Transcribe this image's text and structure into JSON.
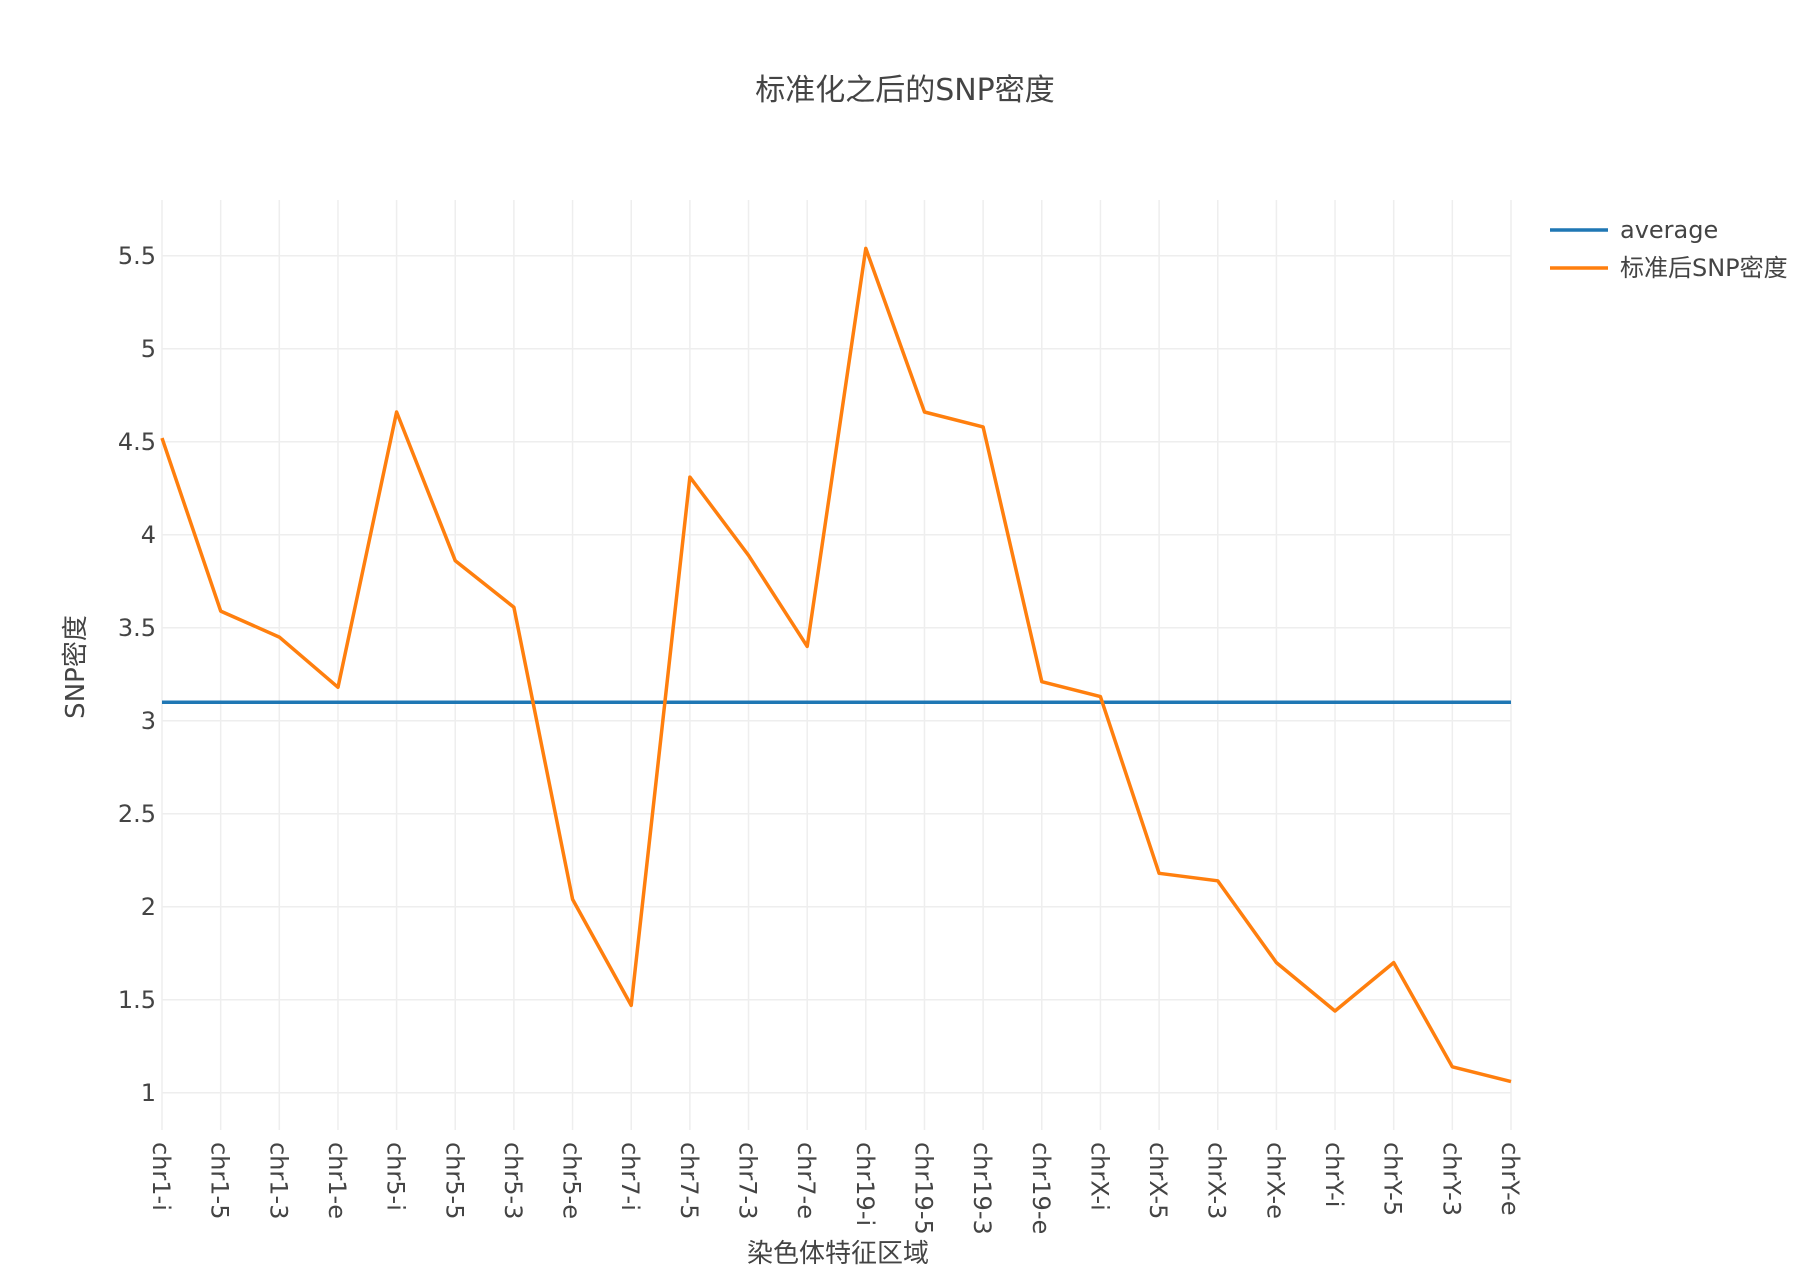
{
  "chart_data": {
    "type": "line",
    "title": "标准化之后的SNP密度",
    "xlabel": "染色体特征区域",
    "ylabel": "SNP密度",
    "ylim": [
      0.8,
      5.8
    ],
    "yticks": [
      1,
      1.5,
      2,
      2.5,
      3,
      3.5,
      4,
      4.5,
      5,
      5.5
    ],
    "ytick_labels": [
      "1",
      "1.5",
      "2",
      "2.5",
      "3",
      "3.5",
      "4",
      "4.5",
      "5",
      "5.5"
    ],
    "grid": true,
    "legend_position": "top-right",
    "categories": [
      "chr1-i",
      "chr1-5",
      "chr1-3",
      "chr1-e",
      "chr5-i",
      "chr5-5",
      "chr5-3",
      "chr5-e",
      "chr7-i",
      "chr7-5",
      "chr7-3",
      "chr7-e",
      "chr19-i",
      "chr19-5",
      "chr19-3",
      "chr19-e",
      "chrX-i",
      "chrX-5",
      "chrX-3",
      "chrX-e",
      "chrY-i",
      "chrY-5",
      "chrY-3",
      "chrY-e"
    ],
    "series": [
      {
        "name": "average",
        "color": "#1f77b4",
        "values": [
          3.1,
          3.1,
          3.1,
          3.1,
          3.1,
          3.1,
          3.1,
          3.1,
          3.1,
          3.1,
          3.1,
          3.1,
          3.1,
          3.1,
          3.1,
          3.1,
          3.1,
          3.1,
          3.1,
          3.1,
          3.1,
          3.1,
          3.1,
          3.1
        ]
      },
      {
        "name": "标准后SNP密度",
        "color": "#ff7f0e",
        "values": [
          4.52,
          3.59,
          3.45,
          3.18,
          4.66,
          3.86,
          3.61,
          2.04,
          1.47,
          4.31,
          3.89,
          3.4,
          5.54,
          4.66,
          4.58,
          3.21,
          3.13,
          2.18,
          2.14,
          1.7,
          1.44,
          1.7,
          1.14,
          1.06
        ]
      }
    ]
  }
}
